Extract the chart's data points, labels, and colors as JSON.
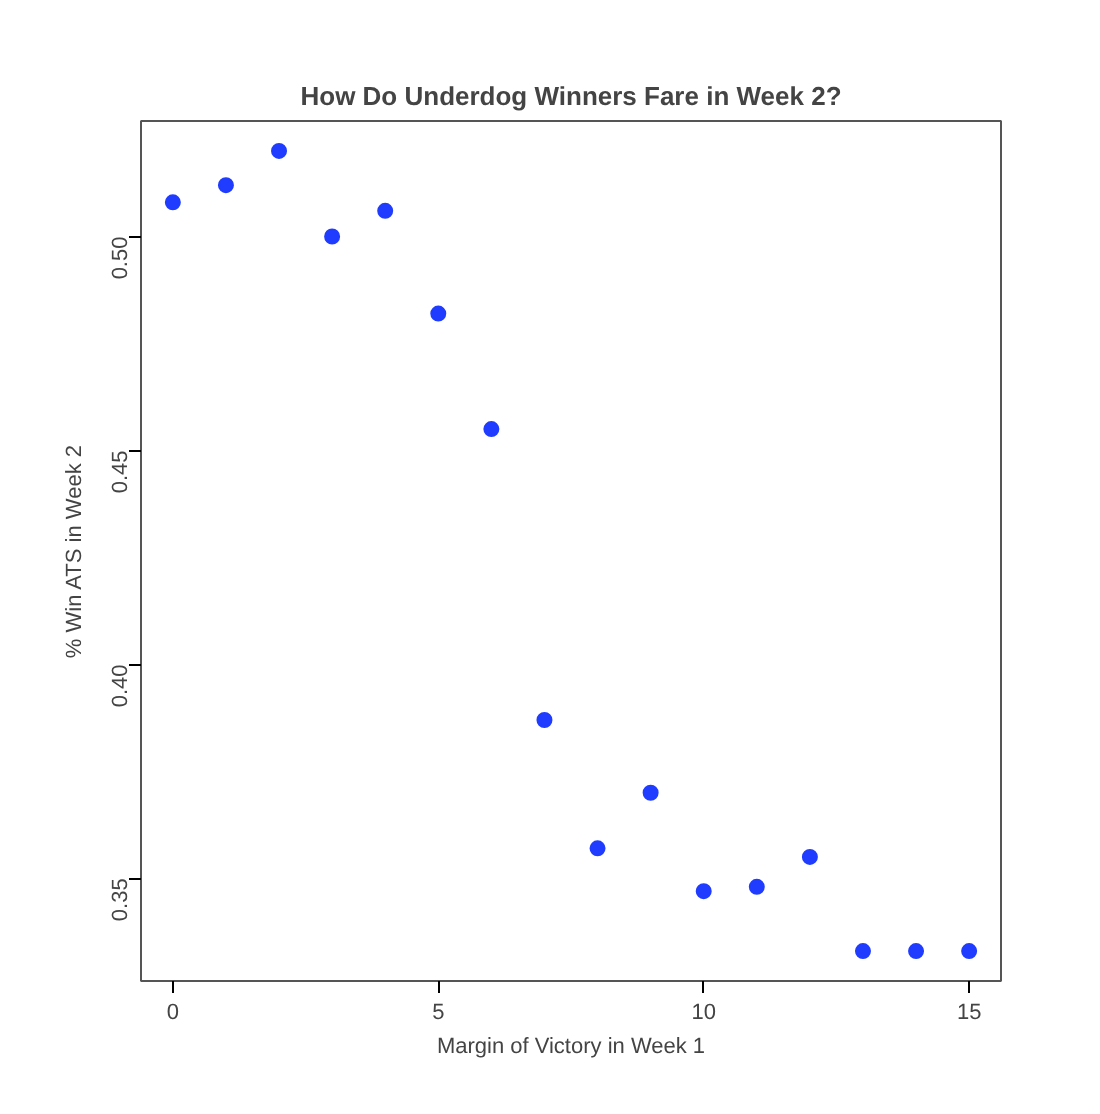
{
  "chart_data": {
    "type": "scatter",
    "title": "How Do Underdog Winners Fare in Week 2?",
    "xlabel": "Margin of Victory in Week 1",
    "ylabel": "% Win ATS in Week 2",
    "x": [
      0,
      1,
      2,
      3,
      4,
      5,
      6,
      7,
      8,
      9,
      10,
      11,
      12,
      13,
      14,
      15
    ],
    "series": [
      {
        "color": "#1f3cff",
        "values": [
          0.508,
          0.512,
          0.52,
          0.5,
          0.506,
          0.482,
          0.455,
          0.387,
          0.357,
          0.37,
          0.347,
          0.348,
          0.355,
          0.333,
          0.333,
          0.333
        ]
      }
    ],
    "xlim": [
      -0.6,
      15.6
    ],
    "ylim": [
      0.326,
      0.527
    ],
    "xticks": [
      0,
      5,
      10,
      15
    ],
    "yticks": [
      {
        "value": 0.35,
        "label": "0.35"
      },
      {
        "value": 0.4,
        "label": "0.40"
      },
      {
        "value": 0.45,
        "label": "0.45"
      },
      {
        "value": 0.5,
        "label": "0.50"
      }
    ],
    "grid": false,
    "marker": "circle"
  }
}
